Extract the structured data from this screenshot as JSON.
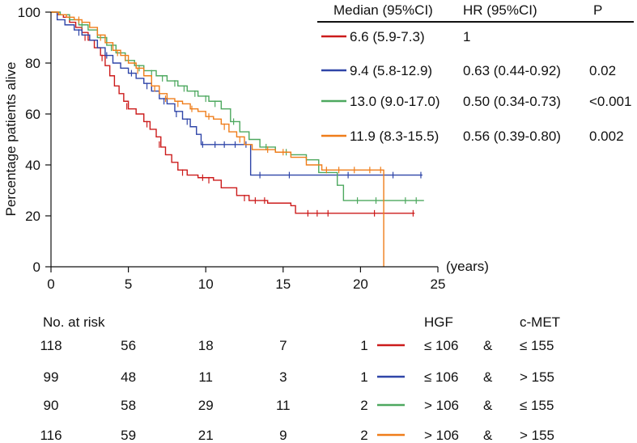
{
  "chart_data": {
    "type": "line",
    "subtype": "kaplan-meier",
    "title": "",
    "xlabel": "(years)",
    "ylabel": "Percentage patients alive",
    "xlim": [
      0,
      25
    ],
    "ylim": [
      0,
      100
    ],
    "x_ticks": [
      "0",
      "5",
      "10",
      "15",
      "20",
      "25"
    ],
    "y_ticks": [
      "0",
      "20",
      "40",
      "60",
      "80",
      "100"
    ],
    "grid": false,
    "legend_headers": {
      "median": "Median (95%CI)",
      "hr": "HR (95%CI)",
      "p": "P"
    },
    "series": [
      {
        "name": "HGF ≤ 106 & c-MET ≤ 155",
        "color": "#cc1b1b",
        "median": "6.6 (5.9-7.3)",
        "hr": "1",
        "p": "",
        "steps": [
          [
            0,
            100
          ],
          [
            0.4,
            99
          ],
          [
            0.8,
            98
          ],
          [
            1.2,
            96
          ],
          [
            1.6,
            94
          ],
          [
            2.0,
            92
          ],
          [
            2.4,
            89
          ],
          [
            2.8,
            86
          ],
          [
            3.2,
            83
          ],
          [
            3.5,
            79
          ],
          [
            3.8,
            75
          ],
          [
            4.1,
            71
          ],
          [
            4.4,
            68
          ],
          [
            4.7,
            65
          ],
          [
            5.0,
            62
          ],
          [
            5.5,
            60
          ],
          [
            6.0,
            57
          ],
          [
            6.4,
            54
          ],
          [
            6.8,
            51
          ],
          [
            7.1,
            47
          ],
          [
            7.4,
            44
          ],
          [
            7.8,
            41
          ],
          [
            8.2,
            38
          ],
          [
            8.8,
            36
          ],
          [
            9.5,
            35
          ],
          [
            10.5,
            34
          ],
          [
            11.0,
            31
          ],
          [
            12.0,
            28
          ],
          [
            12.8,
            26
          ],
          [
            14.0,
            25
          ],
          [
            15.5,
            24
          ],
          [
            15.8,
            21
          ],
          [
            23.5,
            21
          ]
        ],
        "censored": [
          [
            2.2,
            90
          ],
          [
            3.3,
            82
          ],
          [
            4.9,
            63
          ],
          [
            6.2,
            56
          ],
          [
            7.0,
            48
          ],
          [
            8.5,
            37
          ],
          [
            9.8,
            35
          ],
          [
            10.2,
            34
          ],
          [
            12.5,
            27
          ],
          [
            13.2,
            26
          ],
          [
            13.8,
            26
          ],
          [
            16.6,
            21
          ],
          [
            17.2,
            21
          ],
          [
            17.9,
            21
          ],
          [
            20.9,
            21
          ],
          [
            23.4,
            21
          ]
        ]
      },
      {
        "name": "HGF ≤ 106 & c-MET > 155",
        "color": "#2f45a8",
        "median": "9.4 (5.8-12.9)",
        "hr": "0.63 (0.44-0.92)",
        "p": "0.02",
        "steps": [
          [
            0,
            100
          ],
          [
            0.4,
            97
          ],
          [
            0.9,
            95
          ],
          [
            1.5,
            93
          ],
          [
            2.0,
            91
          ],
          [
            2.5,
            89
          ],
          [
            3.0,
            86
          ],
          [
            3.5,
            83
          ],
          [
            4.0,
            80
          ],
          [
            4.5,
            78
          ],
          [
            5.0,
            76
          ],
          [
            5.5,
            74
          ],
          [
            6.0,
            72
          ],
          [
            6.5,
            69
          ],
          [
            7.0,
            66
          ],
          [
            7.5,
            64
          ],
          [
            8.0,
            61
          ],
          [
            8.5,
            58
          ],
          [
            9.0,
            55
          ],
          [
            9.4,
            52
          ],
          [
            9.7,
            48
          ],
          [
            12.9,
            48
          ],
          [
            12.9,
            36
          ],
          [
            24.0,
            36
          ]
        ],
        "censored": [
          [
            1.8,
            92
          ],
          [
            3.6,
            83
          ],
          [
            5.2,
            76
          ],
          [
            6.2,
            71
          ],
          [
            7.3,
            65
          ],
          [
            8.1,
            60
          ],
          [
            8.8,
            57
          ],
          [
            9.8,
            48
          ],
          [
            10.6,
            48
          ],
          [
            11.2,
            48
          ],
          [
            11.9,
            48
          ],
          [
            12.6,
            48
          ],
          [
            13.5,
            36
          ],
          [
            15.4,
            36
          ],
          [
            19.2,
            36
          ],
          [
            22.1,
            36
          ],
          [
            23.9,
            36
          ]
        ]
      },
      {
        "name": "HGF > 106 & c-MET ≤ 155",
        "color": "#4da85f",
        "median": "13.0 (9.0-17.0)",
        "hr": "0.50 (0.34-0.73)",
        "p": "<0.001",
        "steps": [
          [
            0,
            100
          ],
          [
            0.6,
            99
          ],
          [
            1.2,
            97
          ],
          [
            1.8,
            95
          ],
          [
            2.4,
            93
          ],
          [
            3.0,
            90
          ],
          [
            3.6,
            87
          ],
          [
            4.2,
            84
          ],
          [
            4.8,
            81
          ],
          [
            5.4,
            79
          ],
          [
            6.0,
            77
          ],
          [
            6.8,
            75
          ],
          [
            7.5,
            73
          ],
          [
            8.2,
            71
          ],
          [
            8.8,
            69
          ],
          [
            9.5,
            67
          ],
          [
            10.2,
            65
          ],
          [
            11.0,
            62
          ],
          [
            11.6,
            57
          ],
          [
            12.2,
            53
          ],
          [
            12.8,
            50
          ],
          [
            13.5,
            47
          ],
          [
            14.5,
            45
          ],
          [
            15.5,
            44
          ],
          [
            16.5,
            42
          ],
          [
            17.3,
            37
          ],
          [
            18.5,
            32
          ],
          [
            18.9,
            26
          ],
          [
            24.1,
            26
          ]
        ],
        "censored": [
          [
            2.0,
            95
          ],
          [
            3.9,
            86
          ],
          [
            5.7,
            78
          ],
          [
            6.5,
            76
          ],
          [
            7.2,
            74
          ],
          [
            8.0,
            72
          ],
          [
            8.6,
            70
          ],
          [
            9.3,
            68
          ],
          [
            10.0,
            66
          ],
          [
            10.6,
            64
          ],
          [
            11.8,
            57
          ],
          [
            13.9,
            47
          ],
          [
            15.2,
            45
          ],
          [
            19.8,
            26
          ],
          [
            21.0,
            26
          ],
          [
            22.9,
            26
          ],
          [
            23.6,
            26
          ]
        ]
      },
      {
        "name": "HGF > 106 & c-MET > 155",
        "color": "#ef7d1a",
        "median": "11.9 (8.3-15.5)",
        "hr": "0.56 (0.39-0.80)",
        "p": "0.002",
        "steps": [
          [
            0,
            100
          ],
          [
            0.5,
            99
          ],
          [
            1.0,
            98
          ],
          [
            1.5,
            97
          ],
          [
            2.0,
            96
          ],
          [
            2.5,
            94
          ],
          [
            3.0,
            91
          ],
          [
            3.5,
            88
          ],
          [
            4.0,
            85
          ],
          [
            4.5,
            83
          ],
          [
            5.0,
            80
          ],
          [
            5.5,
            78
          ],
          [
            6.0,
            75
          ],
          [
            6.5,
            71
          ],
          [
            7.0,
            68
          ],
          [
            7.5,
            66
          ],
          [
            8.0,
            65
          ],
          [
            8.5,
            64
          ],
          [
            9.0,
            62
          ],
          [
            9.5,
            61
          ],
          [
            10.0,
            59
          ],
          [
            10.5,
            58
          ],
          [
            11.0,
            56
          ],
          [
            11.5,
            53
          ],
          [
            12.0,
            51
          ],
          [
            12.5,
            48
          ],
          [
            13.0,
            46
          ],
          [
            14.5,
            45
          ],
          [
            15.5,
            43
          ],
          [
            16.5,
            40
          ],
          [
            17.5,
            38
          ],
          [
            21.5,
            38
          ],
          [
            21.5,
            0
          ]
        ],
        "censored": [
          [
            1.8,
            97
          ],
          [
            3.2,
            90
          ],
          [
            4.3,
            84
          ],
          [
            4.8,
            82
          ],
          [
            5.6,
            77
          ],
          [
            6.7,
            70
          ],
          [
            7.4,
            66
          ],
          [
            8.2,
            64
          ],
          [
            9.1,
            62
          ],
          [
            10.2,
            59
          ],
          [
            11.2,
            55
          ],
          [
            12.2,
            50
          ],
          [
            14.0,
            46
          ],
          [
            15.0,
            45
          ],
          [
            17.8,
            38
          ],
          [
            18.6,
            38
          ],
          [
            19.6,
            38
          ],
          [
            20.6,
            38
          ],
          [
            21.3,
            38
          ]
        ]
      }
    ]
  },
  "risk_table": {
    "title": "No. at risk",
    "hgf_header": "HGF",
    "cmet_header": "c-MET",
    "rows": [
      {
        "counts": [
          "118",
          "56",
          "18",
          "7"
        ],
        "group": "1",
        "hgf": "≤ 106",
        "amp": "&",
        "cmet": "≤ 155"
      },
      {
        "counts": [
          "99",
          "48",
          "11",
          "3"
        ],
        "group": "1",
        "hgf": "≤ 106",
        "amp": "&",
        "cmet": "> 155"
      },
      {
        "counts": [
          "90",
          "58",
          "29",
          "11"
        ],
        "group": "2",
        "hgf": "> 106",
        "amp": "&",
        "cmet": "≤ 155"
      },
      {
        "counts": [
          "116",
          "59",
          "21",
          "9"
        ],
        "group": "2",
        "hgf": "> 106",
        "amp": "&",
        "cmet": "> 155"
      }
    ]
  }
}
